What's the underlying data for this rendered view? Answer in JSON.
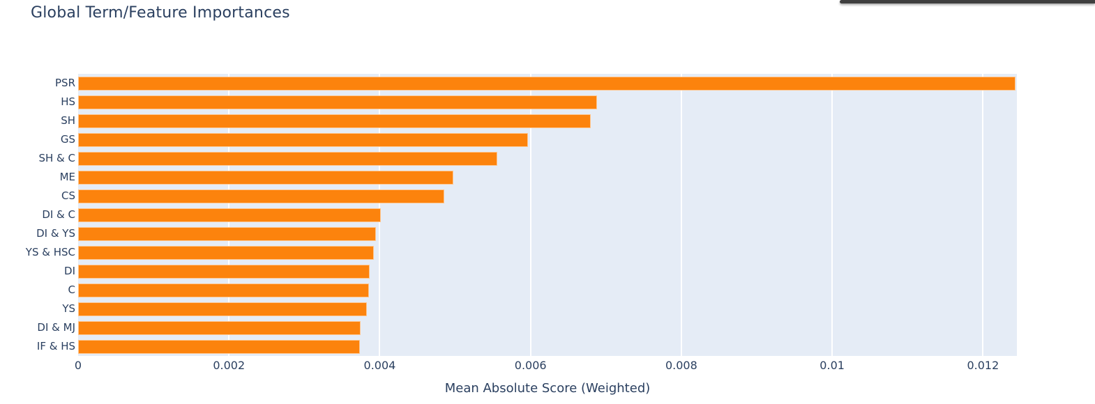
{
  "page": {
    "background": "#ffffff"
  },
  "decor": {
    "top_strip_color": "#3f3f3f"
  },
  "chart_data": {
    "type": "bar",
    "orientation": "horizontal",
    "title": "Global Term/Feature Importances",
    "xlabel": "Mean Absolute Score (Weighted)",
    "ylabel": "",
    "legend_position": "none",
    "grid": true,
    "categories": [
      "PSR",
      "HS",
      "SH",
      "GS",
      "SH & C",
      "ME",
      "CS",
      "DI & C",
      "DI & YS",
      "YS & HSC",
      "DI",
      "C",
      "YS",
      "DI & MJ",
      "IF & HS"
    ],
    "values": [
      0.01243,
      0.00688,
      0.0068,
      0.00597,
      0.00556,
      0.00498,
      0.00486,
      0.00401,
      0.00395,
      0.00392,
      0.00387,
      0.00386,
      0.00383,
      0.00375,
      0.00374
    ],
    "xlim": [
      0,
      0.01245
    ],
    "xticks": [
      0,
      0.002,
      0.004,
      0.006,
      0.008,
      0.01,
      0.012
    ],
    "xtick_labels": [
      "0",
      "0.002",
      "0.004",
      "0.006",
      "0.008",
      "0.01",
      "0.012"
    ],
    "colors": {
      "bar": "#fc830d",
      "plot_background": "#e5ecf6",
      "gridline": "#ffffff",
      "text": "#2a3f5f"
    }
  }
}
